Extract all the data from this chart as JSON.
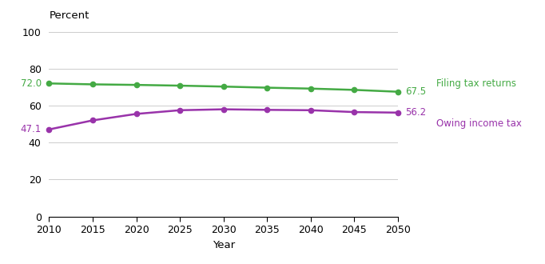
{
  "years": [
    2010,
    2015,
    2020,
    2025,
    2030,
    2035,
    2040,
    2045,
    2050
  ],
  "filing_tax_returns": [
    72.0,
    71.5,
    71.2,
    70.8,
    70.3,
    69.7,
    69.2,
    68.5,
    67.5
  ],
  "owing_income_tax": [
    47.1,
    52.0,
    55.5,
    57.5,
    58.0,
    57.7,
    57.5,
    56.5,
    56.2
  ],
  "green_color": "#44AA44",
  "purple_color": "#9933AA",
  "ylabel": "Percent",
  "xlabel": "Year",
  "ylim": [
    0,
    100
  ],
  "yticks": [
    0,
    20,
    40,
    60,
    80,
    100
  ],
  "xticks": [
    2010,
    2015,
    2020,
    2025,
    2030,
    2035,
    2040,
    2045,
    2050
  ],
  "label_filing": "Filing tax returns",
  "label_owing": "Owing income tax",
  "start_label_filing": "72.0",
  "end_label_filing": "67.5",
  "start_label_owing": "47.1",
  "end_label_owing": "56.2"
}
